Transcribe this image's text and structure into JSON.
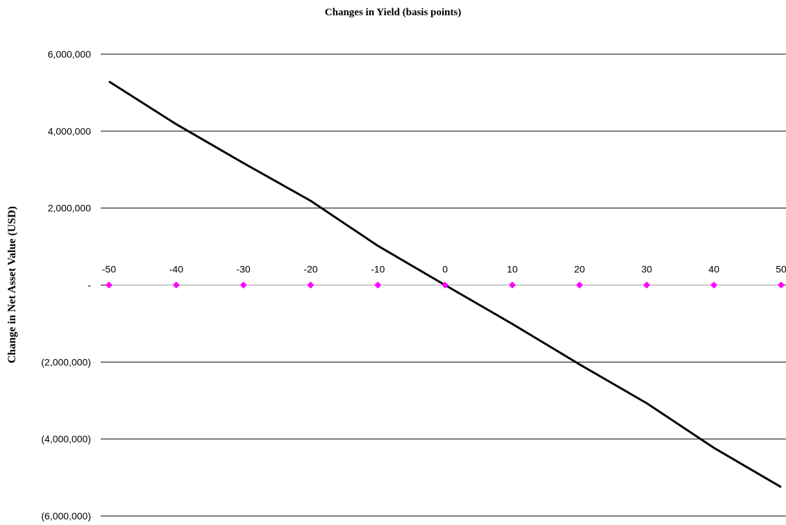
{
  "chart_data": {
    "type": "line",
    "title": "Changes in Yield (basis points)",
    "xlabel": "",
    "ylabel": "Change in Net Asset Value (USD)",
    "x": [
      -50,
      -40,
      -30,
      -20,
      -10,
      0,
      10,
      20,
      30,
      40,
      50
    ],
    "x_tick_labels": [
      "-50",
      "-40",
      "-30",
      "-20",
      "-10",
      "0",
      "10",
      "20",
      "30",
      "40",
      "50"
    ],
    "xlim": [
      -50,
      50
    ],
    "ylim": [
      -6000000,
      6000000
    ],
    "y_ticks": [
      6000000,
      4000000,
      2000000,
      0,
      -2000000,
      -4000000,
      -6000000
    ],
    "y_tick_labels": [
      "6,000,000",
      "4,000,000",
      "2,000,000",
      "-",
      "(2,000,000)",
      "(4,000,000)",
      "(6,000,000)"
    ],
    "grid": true,
    "legend": "none",
    "series": [
      {
        "color": "#000000",
        "values": [
          5290000,
          4180000,
          3170000,
          2190000,
          1020000,
          0,
          -1010000,
          -2060000,
          -3070000,
          -4230000,
          -5250000
        ]
      },
      {
        "color": "#ff00ff",
        "marker": "diamond",
        "values": [
          0,
          0,
          0,
          0,
          0,
          0,
          0,
          0,
          0,
          0,
          0
        ]
      }
    ]
  }
}
